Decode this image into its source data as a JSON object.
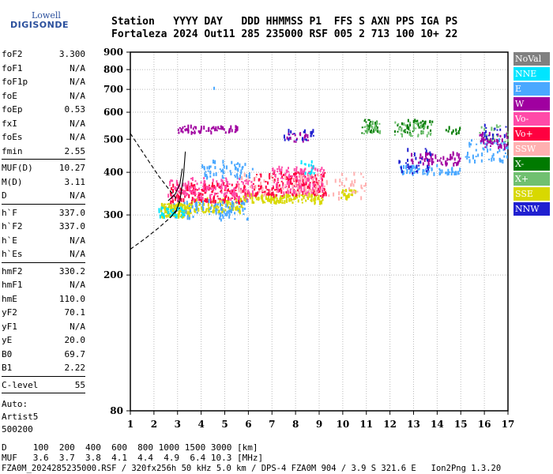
{
  "logo": {
    "line1": "Lowell",
    "line2": "DIGISONDE"
  },
  "header": {
    "line1": "Station   YYYY DAY   DDD HHMMSS P1  FFS S AXN PPS IGA PS",
    "line2": "Fortaleza 2024 Out11 285 235000 RSF 005 2 713 100 10+ 22"
  },
  "params": [
    [
      {
        "k": "foF2",
        "v": "3.300"
      },
      {
        "k": "foF1",
        "v": "N/A"
      },
      {
        "k": "foF1p",
        "v": "N/A"
      },
      {
        "k": "foE",
        "v": "N/A"
      },
      {
        "k": "foEp",
        "v": "0.53"
      },
      {
        "k": "fxI",
        "v": "N/A"
      },
      {
        "k": "foEs",
        "v": "N/A"
      },
      {
        "k": "fmin",
        "v": "2.55"
      }
    ],
    [
      {
        "k": "MUF(D)",
        "v": "10.27"
      },
      {
        "k": "M(D)",
        "v": "3.11"
      },
      {
        "k": "D",
        "v": "N/A"
      }
    ],
    [
      {
        "k": "h`F",
        "v": "337.0"
      },
      {
        "k": "h`F2",
        "v": "337.0"
      },
      {
        "k": "h`E",
        "v": "N/A"
      },
      {
        "k": "h`Es",
        "v": "N/A"
      }
    ],
    [
      {
        "k": "hmF2",
        "v": "330.2"
      },
      {
        "k": "hmF1",
        "v": "N/A"
      },
      {
        "k": "hmE",
        "v": "110.0"
      },
      {
        "k": "yF2",
        "v": "70.1"
      },
      {
        "k": "yF1",
        "v": "N/A"
      },
      {
        "k": "yE",
        "v": "20.0"
      },
      {
        "k": "B0",
        "v": "69.7"
      },
      {
        "k": "B1",
        "v": "2.22"
      }
    ],
    [
      {
        "k": "C-level",
        "v": "55"
      }
    ]
  ],
  "auto": {
    "l1": "Auto:",
    "l2": "Artist5",
    "l3": "500200"
  },
  "legend": [
    {
      "label": "NoVal",
      "color": "#808080"
    },
    {
      "label": "NNE",
      "color": "#00e5ff"
    },
    {
      "label": "E",
      "color": "#4aa8ff"
    },
    {
      "label": "W",
      "color": "#a000a0"
    },
    {
      "label": "Vo-",
      "color": "#ff4aa8"
    },
    {
      "label": "Vo+",
      "color": "#ff0040"
    },
    {
      "label": "SSW",
      "color": "#ffb0b0"
    },
    {
      "label": "X-",
      "color": "#007a00"
    },
    {
      "label": "X+",
      "color": "#70c070"
    },
    {
      "label": "SSE",
      "color": "#d8d800"
    },
    {
      "label": "NNW",
      "color": "#2020d0"
    }
  ],
  "bottom": {
    "d_line": "D     100  200  400  600  800 1000 1500 3000 [km]",
    "muf_line": "MUF   3.6  3.7  3.8  4.1  4.4  4.9  6.4 10.3 [MHz]",
    "footer": "FZA0M_2024285235000.RSF / 320fx256h 50 kHz 5.0 km / DPS-4 FZA0M 904 / 3.9 S 321.6 E   Ion2Png 1.3.20"
  },
  "chart_data": {
    "type": "scatter",
    "xlim": [
      1,
      17
    ],
    "ylim": [
      80,
      900
    ],
    "y_scale": "log",
    "x_ticks": [
      1,
      2,
      3,
      4,
      5,
      6,
      7,
      8,
      9,
      10,
      11,
      12,
      13,
      14,
      15,
      16,
      17
    ],
    "y_ticks": [
      80,
      200,
      300,
      400,
      500,
      600,
      700,
      800,
      900
    ],
    "grid": true,
    "legend_position": "right",
    "clusters": [
      {
        "series": "SSE",
        "x": [
          2.3,
          3.6
        ],
        "y": [
          295,
          325
        ],
        "n": 140
      },
      {
        "series": "SSE",
        "x": [
          3.6,
          5.8
        ],
        "y": [
          305,
          335
        ],
        "n": 120
      },
      {
        "series": "SSE",
        "x": [
          5.8,
          9.2
        ],
        "y": [
          325,
          345
        ],
        "n": 140
      },
      {
        "series": "SSE",
        "x": [
          9.9,
          10.6
        ],
        "y": [
          335,
          355
        ],
        "n": 25
      },
      {
        "series": "Vo+",
        "x": [
          2.7,
          6.0
        ],
        "y": [
          325,
          370
        ],
        "n": 170
      },
      {
        "series": "Vo+",
        "x": [
          6.2,
          9.3
        ],
        "y": [
          340,
          400
        ],
        "n": 170
      },
      {
        "series": "Vo-",
        "x": [
          2.6,
          6.2
        ],
        "y": [
          330,
          385
        ],
        "n": 150
      },
      {
        "series": "Vo-",
        "x": [
          7.0,
          9.2
        ],
        "y": [
          345,
          415
        ],
        "n": 130
      },
      {
        "series": "SSW",
        "x": [
          5.5,
          9.7
        ],
        "y": [
          340,
          395
        ],
        "n": 80
      },
      {
        "series": "SSW",
        "x": [
          9.8,
          11.0
        ],
        "y": [
          335,
          400
        ],
        "n": 30
      },
      {
        "series": "E",
        "x": [
          2.8,
          6.0
        ],
        "y": [
          290,
          330
        ],
        "n": 80
      },
      {
        "series": "E",
        "x": [
          4.0,
          6.2
        ],
        "y": [
          385,
          430
        ],
        "n": 60
      },
      {
        "series": "E",
        "x": [
          12.3,
          14.0
        ],
        "y": [
          395,
          420
        ],
        "n": 45
      },
      {
        "series": "E",
        "x": [
          14.0,
          15.0
        ],
        "y": [
          395,
          410
        ],
        "n": 30
      },
      {
        "series": "E",
        "x": [
          15.2,
          17.0
        ],
        "y": [
          430,
          500
        ],
        "n": 60
      },
      {
        "series": "NNE",
        "x": [
          2.2,
          3.3
        ],
        "y": [
          295,
          315
        ],
        "n": 40
      },
      {
        "series": "NNE",
        "x": [
          8.2,
          8.8
        ],
        "y": [
          395,
          440
        ],
        "n": 15
      },
      {
        "series": "W",
        "x": [
          3.0,
          5.6
        ],
        "y": [
          520,
          545
        ],
        "n": 70
      },
      {
        "series": "W",
        "x": [
          7.6,
          8.6
        ],
        "y": [
          490,
          520
        ],
        "n": 20
      },
      {
        "series": "W",
        "x": [
          12.9,
          15.0
        ],
        "y": [
          420,
          455
        ],
        "n": 70
      },
      {
        "series": "W",
        "x": [
          15.8,
          17.0
        ],
        "y": [
          470,
          520
        ],
        "n": 40
      },
      {
        "series": "X-",
        "x": [
          10.8,
          11.5
        ],
        "y": [
          520,
          575
        ],
        "n": 25
      },
      {
        "series": "X-",
        "x": [
          12.2,
          13.8
        ],
        "y": [
          520,
          570
        ],
        "n": 45
      },
      {
        "series": "X-",
        "x": [
          14.3,
          15.0
        ],
        "y": [
          515,
          540
        ],
        "n": 12
      },
      {
        "series": "X+",
        "x": [
          10.9,
          11.6
        ],
        "y": [
          515,
          560
        ],
        "n": 25
      },
      {
        "series": "X+",
        "x": [
          12.2,
          13.8
        ],
        "y": [
          505,
          560
        ],
        "n": 35
      },
      {
        "series": "X+",
        "x": [
          15.8,
          17.0
        ],
        "y": [
          490,
          550
        ],
        "n": 20
      },
      {
        "series": "NNW",
        "x": [
          7.5,
          8.8
        ],
        "y": [
          490,
          530
        ],
        "n": 20
      },
      {
        "series": "NNW",
        "x": [
          12.3,
          13.8
        ],
        "y": [
          395,
          470
        ],
        "n": 30
      },
      {
        "series": "NNW",
        "x": [
          16.0,
          17.0
        ],
        "y": [
          500,
          550
        ],
        "n": 15
      },
      {
        "series": "NoVal",
        "x": [
          1.0,
          0.0
        ],
        "y": [
          0,
          0
        ],
        "n": 0
      }
    ],
    "profile_dashed": {
      "x": [
        1.0,
        1.6,
        2.2,
        2.8,
        3.1
      ],
      "y": [
        520,
        450,
        390,
        345,
        325
      ]
    },
    "profile_dashed_low": {
      "x": [
        1.0,
        1.6,
        2.2,
        2.7,
        3.1
      ],
      "y": [
        238,
        255,
        275,
        295,
        315
      ]
    },
    "profile_solid": {
      "x": [
        2.7,
        2.95,
        3.1,
        3.25,
        3.33
      ],
      "y": [
        295,
        310,
        330,
        390,
        460
      ]
    },
    "profile_solid2": {
      "x": [
        2.6,
        2.9,
        3.1,
        3.2
      ],
      "y": [
        330,
        345,
        370,
        410
      ]
    },
    "isolated_points": [
      {
        "x": 4.55,
        "y": 705,
        "series": "E"
      }
    ]
  }
}
